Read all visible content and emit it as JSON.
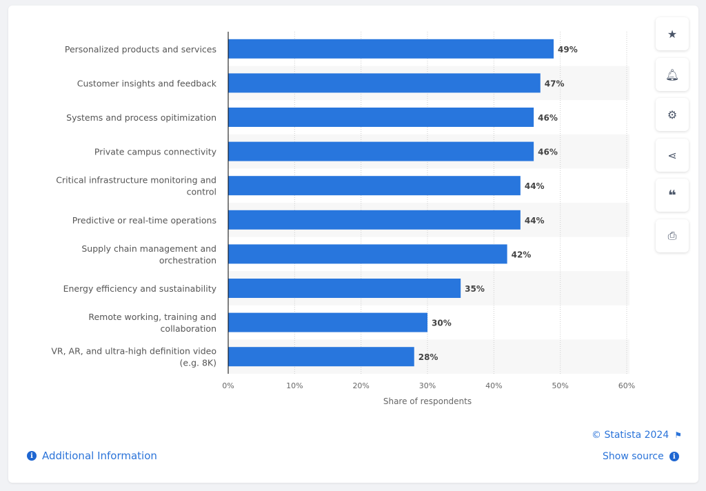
{
  "chart_data": {
    "type": "bar",
    "orientation": "horizontal",
    "categories": [
      "Personalized products and services",
      "Customer insights and feedback",
      "Systems and process opitimization",
      "Private campus connectivity",
      "Critical infrastructure monitoring and control",
      "Predictive or real-time operations",
      "Supply chain management and orchestration",
      "Energy efficiency and sustainability",
      "Remote working, training and collaboration",
      "VR, AR, and ultra-high definition video (e.g. 8K)"
    ],
    "category_lines": [
      [
        "Personalized products and services"
      ],
      [
        "Customer insights and feedback"
      ],
      [
        "Systems and process opitimization"
      ],
      [
        "Private campus connectivity"
      ],
      [
        "Critical infrastructure monitoring and",
        "control"
      ],
      [
        "Predictive or real-time operations"
      ],
      [
        "Supply chain management and",
        "orchestration"
      ],
      [
        "Energy efficiency and sustainability"
      ],
      [
        "Remote working, training and",
        "collaboration"
      ],
      [
        "VR, AR, and ultra-high definition video",
        "(e.g. 8K)"
      ]
    ],
    "values": [
      49,
      47,
      46,
      46,
      44,
      44,
      42,
      35,
      30,
      28
    ],
    "data_labels": [
      "49%",
      "47%",
      "46%",
      "46%",
      "44%",
      "44%",
      "42%",
      "35%",
      "30%",
      "28%"
    ],
    "xlabel": "Share of respondents",
    "xlim": [
      0,
      60
    ],
    "ticks": [
      "0%",
      "10%",
      "20%",
      "30%",
      "40%",
      "50%",
      "60%"
    ],
    "grid": true,
    "bar_color": "#2876dd"
  },
  "footer": {
    "copyright": "© Statista 2024",
    "show_source": "Show source",
    "additional_info": "Additional Information"
  },
  "sidebar": [
    "star-icon",
    "bell-icon",
    "gear-icon",
    "share-icon",
    "quote-icon",
    "print-icon"
  ]
}
